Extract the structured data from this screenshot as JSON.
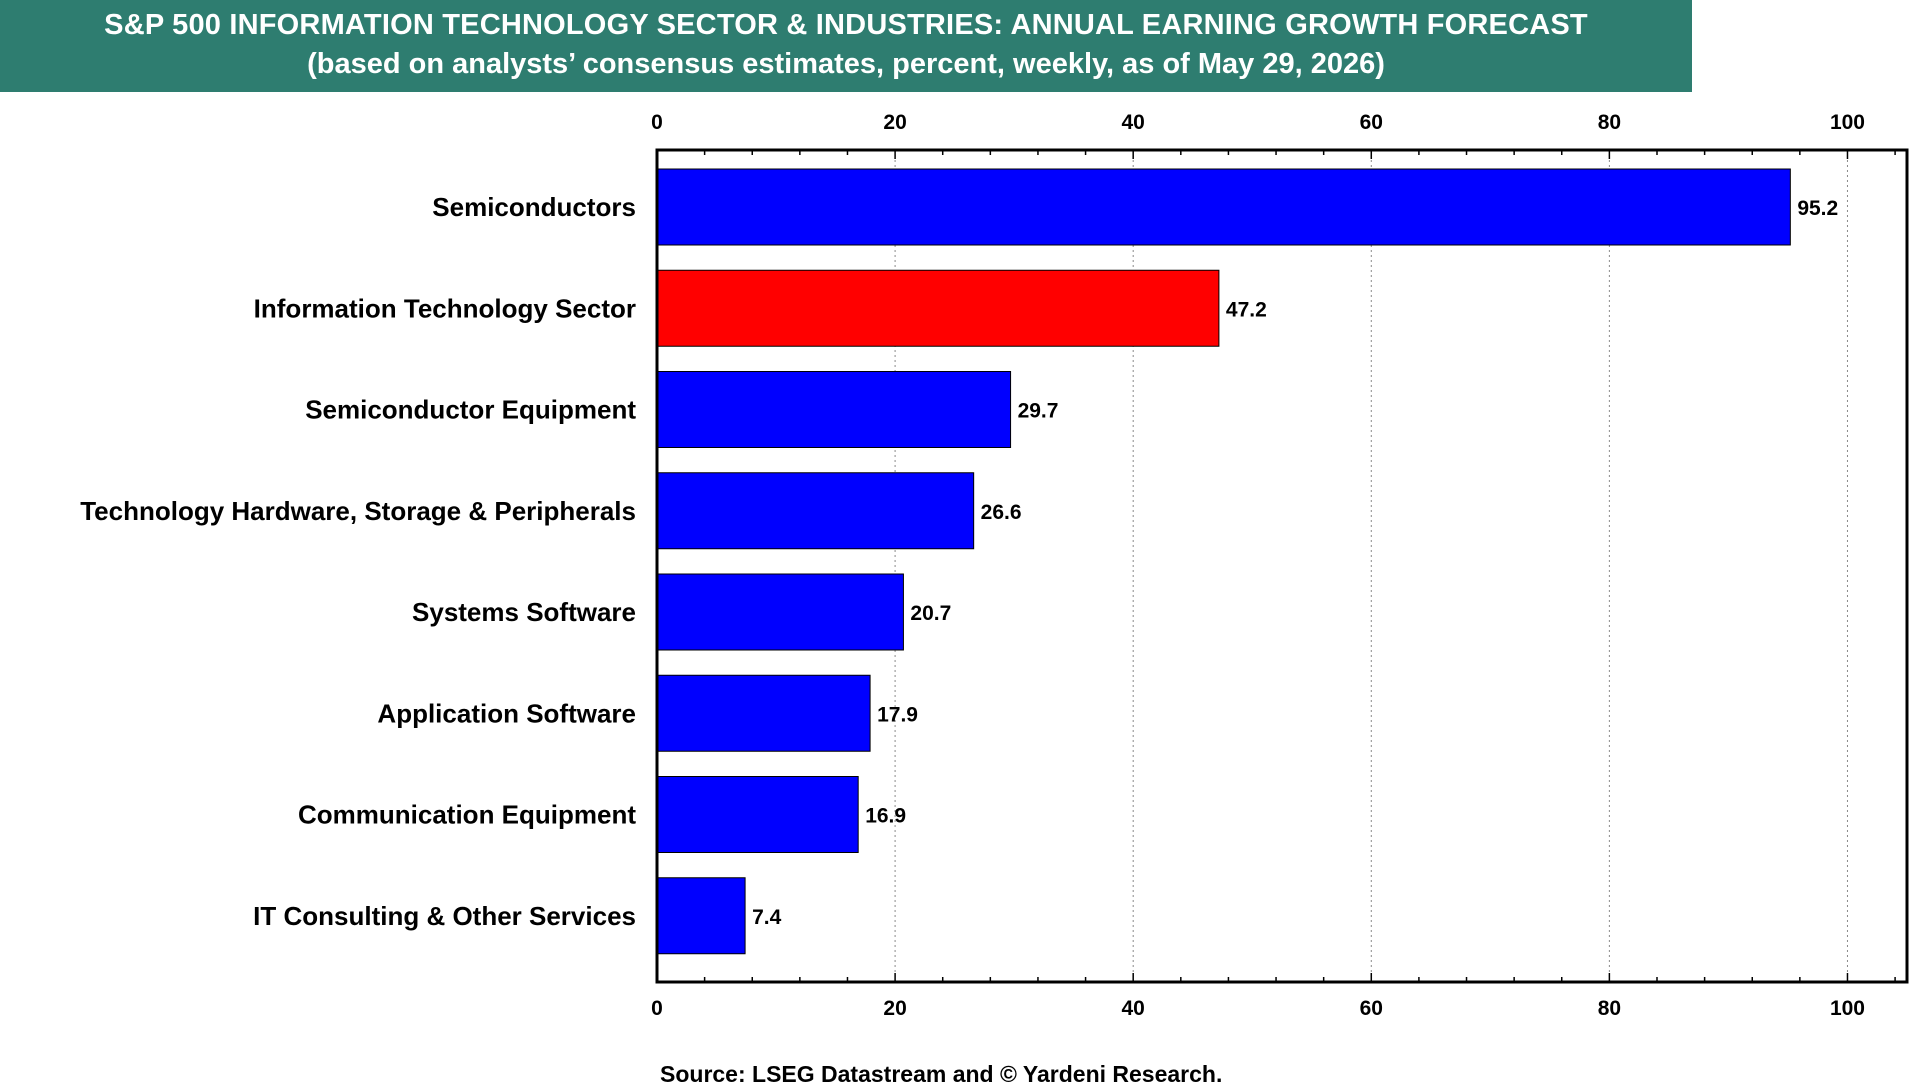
{
  "title": {
    "line1": "S&P 500 INFORMATION TECHNOLOGY SECTOR & INDUSTRIES: ANNUAL EARNING GROWTH FORECAST",
    "line2": "(based on analysts’ consensus estimates, percent, weekly, as of May 29, 2026)"
  },
  "source": "Source: LSEG Datastream and © Yardeni Research.",
  "colors": {
    "banner": "#2e7d70",
    "bar_default": "#0000ff",
    "bar_highlight": "#ff0000"
  },
  "chart_data": {
    "type": "bar",
    "orientation": "horizontal",
    "categories": [
      "Semiconductors",
      "Information Technology Sector",
      "Semiconductor Equipment",
      "Technology Hardware, Storage & Peripherals",
      "Systems Software",
      "Application Software",
      "Communication Equipment",
      "IT Consulting & Other Services"
    ],
    "values": [
      95.2,
      47.2,
      29.7,
      26.6,
      20.7,
      17.9,
      16.9,
      7.4
    ],
    "data_labels": [
      "95.2",
      "47.2",
      "29.7",
      "26.6",
      "20.7",
      "17.9",
      "16.9",
      "7.4"
    ],
    "highlight_index": 1,
    "xlim": [
      0,
      105
    ],
    "xticks": [
      0,
      20,
      40,
      60,
      80,
      100
    ],
    "xtick_labels": [
      "0",
      "20",
      "40",
      "60",
      "80",
      "100"
    ],
    "minor_tick_step": 4,
    "axis_positions": [
      "top",
      "bottom"
    ],
    "grid": "vertical dotted at major ticks"
  }
}
